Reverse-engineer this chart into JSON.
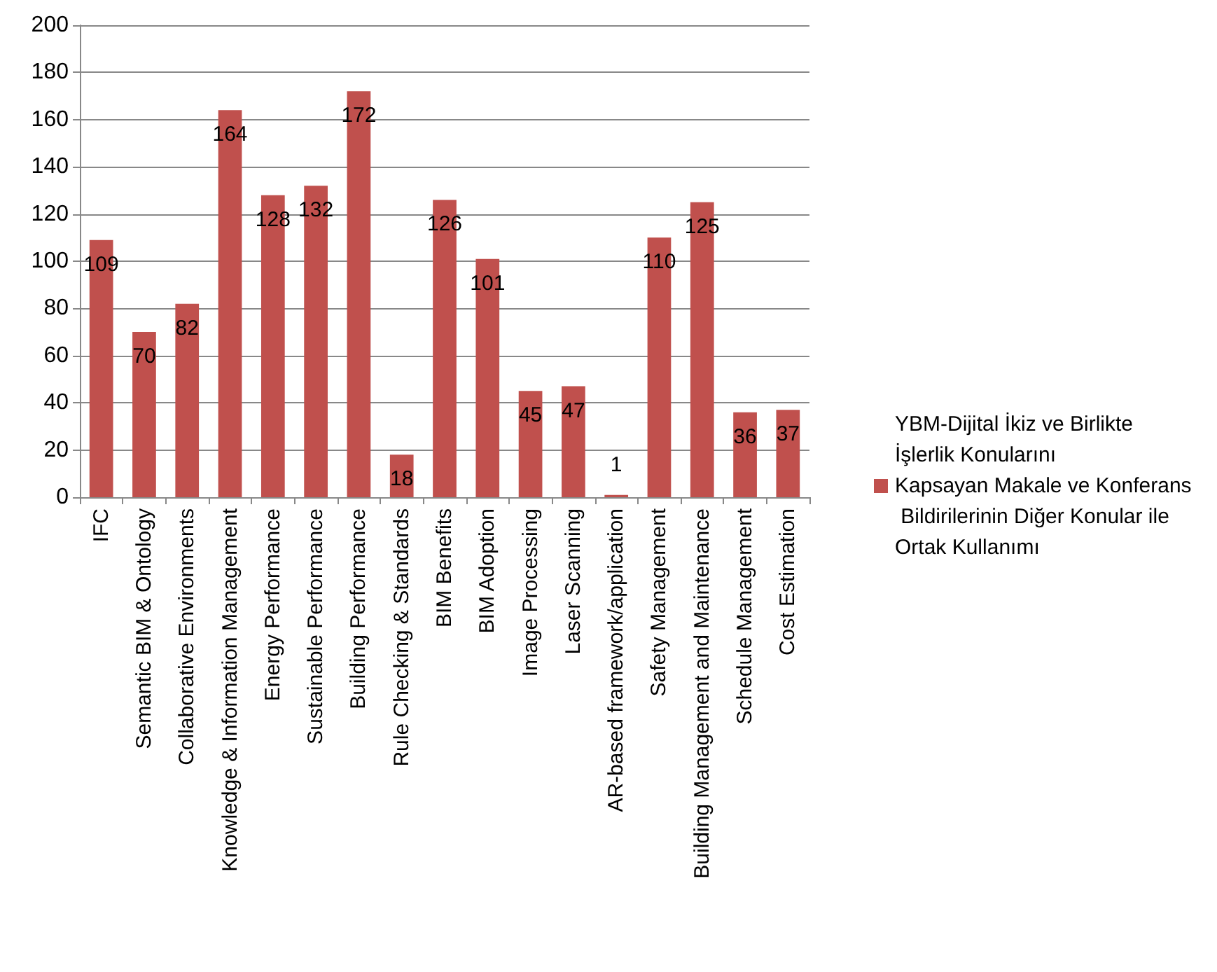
{
  "chart_data": {
    "type": "bar",
    "categories": [
      "IFC",
      "Semantic BIM & Ontology",
      "Collaborative Environments",
      "Knowledge & Information Management",
      "Energy Performance",
      "Sustainable Performance",
      "Building Performance",
      "Rule Checking & Standards",
      "BIM Benefits",
      "BIM Adoption",
      "Image Processing",
      "Laser Scanning",
      "AR-based framework/application",
      "Safety Management",
      "Building Management and Maintenance",
      "Schedule Management",
      "Cost Estimation"
    ],
    "series": [
      {
        "name": "YBM-Dijital İkiz ve Birlikte İşlerlik Konularını Kapsayan Makale ve Konferans Bildirilerinin Diğer Konular ile Ortak Kullanımı",
        "color": "#c0504d",
        "values": [
          109,
          70,
          82,
          164,
          128,
          132,
          172,
          18,
          126,
          101,
          45,
          47,
          1,
          110,
          125,
          36,
          37
        ]
      }
    ],
    "ylim": [
      0,
      200
    ],
    "yticks": [
      0,
      20,
      40,
      60,
      80,
      100,
      120,
      140,
      160,
      180,
      200
    ],
    "grid": "y",
    "legend": "right",
    "data_labels": true
  }
}
